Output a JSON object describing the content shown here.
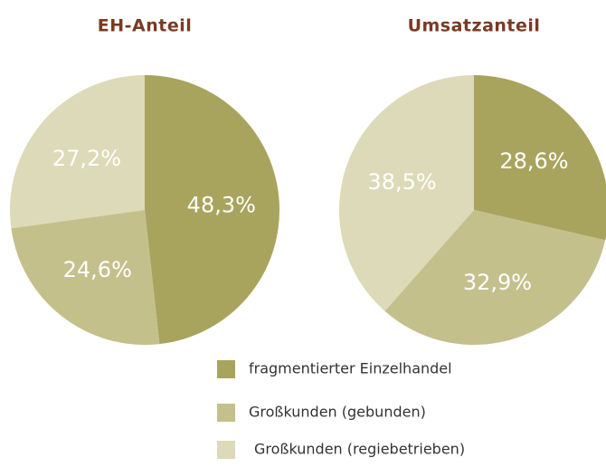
{
  "chart_data": [
    {
      "type": "pie",
      "title": "EH-Anteil",
      "categories": [
        "fragmentierter Einzelhandel",
        "Großkunden (gebunden)",
        "Großkunden (regiebetrieben)"
      ],
      "values": [
        48.3,
        24.6,
        27.2
      ],
      "value_labels": [
        "48,3%",
        "24,6%",
        "27,2%"
      ],
      "colors": [
        "#a8a45e",
        "#c4c08c",
        "#dcdab8"
      ]
    },
    {
      "type": "pie",
      "title": "Umsatzanteil",
      "values": [
        28.6,
        32.9,
        38.5
      ],
      "value_labels": [
        "28,6%",
        "32,9%",
        "38,5%"
      ],
      "colors": [
        "#a8a45e",
        "#c4c08c",
        "#dcdab8"
      ]
    }
  ]
}
